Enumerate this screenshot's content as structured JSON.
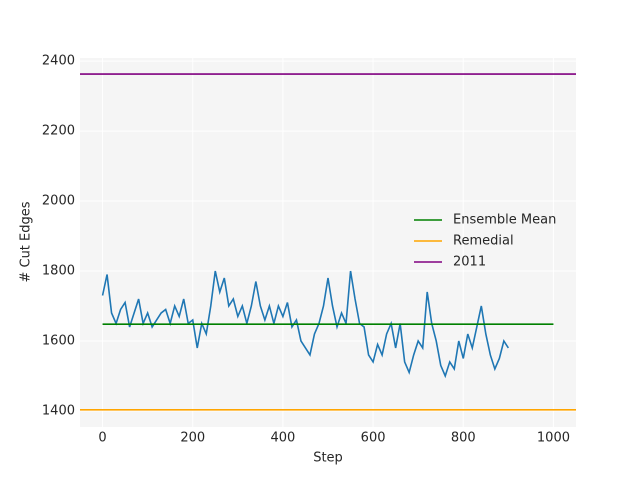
{
  "chart_data": {
    "type": "line",
    "xlabel": "Step",
    "ylabel": "# Cut Edges",
    "xlim": [
      -50,
      1050
    ],
    "ylim": [
      1354,
      2409
    ],
    "xticks": [
      0,
      200,
      400,
      600,
      800,
      1000
    ],
    "yticks": [
      1400,
      1600,
      1800,
      2000,
      2200,
      2400
    ],
    "grid": true,
    "series": [
      {
        "color": "#1f77b4",
        "x": [
          0,
          10,
          20,
          30,
          40,
          50,
          60,
          70,
          80,
          90,
          100,
          110,
          120,
          130,
          140,
          150,
          160,
          170,
          180,
          190,
          200,
          210,
          220,
          230,
          240,
          250,
          260,
          270,
          280,
          290,
          300,
          310,
          320,
          330,
          340,
          350,
          360,
          370,
          380,
          390,
          400,
          410,
          420,
          430,
          440,
          450,
          460,
          470,
          480,
          490,
          500,
          510,
          520,
          530,
          540,
          550,
          560,
          570,
          580,
          590,
          600,
          610,
          620,
          630,
          640,
          650,
          660,
          670,
          680,
          690,
          700,
          710,
          720,
          730,
          740,
          750,
          760,
          770,
          780,
          790,
          800,
          810,
          820,
          830,
          840,
          850,
          860,
          870,
          880,
          890,
          900
        ],
        "values": [
          1730,
          1790,
          1680,
          1650,
          1690,
          1710,
          1640,
          1680,
          1720,
          1650,
          1680,
          1640,
          1660,
          1680,
          1690,
          1650,
          1700,
          1670,
          1720,
          1650,
          1660,
          1580,
          1650,
          1620,
          1700,
          1800,
          1740,
          1780,
          1700,
          1720,
          1670,
          1700,
          1650,
          1700,
          1770,
          1700,
          1660,
          1700,
          1650,
          1700,
          1670,
          1710,
          1640,
          1660,
          1600,
          1580,
          1560,
          1620,
          1650,
          1700,
          1780,
          1700,
          1640,
          1680,
          1650,
          1800,
          1720,
          1650,
          1640,
          1560,
          1540,
          1590,
          1560,
          1620,
          1650,
          1580,
          1650,
          1540,
          1510,
          1560,
          1600,
          1580,
          1740,
          1650,
          1600,
          1530,
          1500,
          1540,
          1520,
          1600,
          1550,
          1620,
          1580,
          1640,
          1700,
          1620,
          1560,
          1520,
          1550,
          1600,
          1580
        ]
      }
    ],
    "reference_lines": [
      {
        "name": "Ensemble Mean",
        "color": "#008000",
        "value": 1648,
        "x": [
          0,
          1000
        ]
      },
      {
        "name": "Remedial",
        "color": "#ffa500",
        "value": 1403
      },
      {
        "name": "2011",
        "color": "#800080",
        "value": 2363
      }
    ],
    "legend": "center right"
  }
}
